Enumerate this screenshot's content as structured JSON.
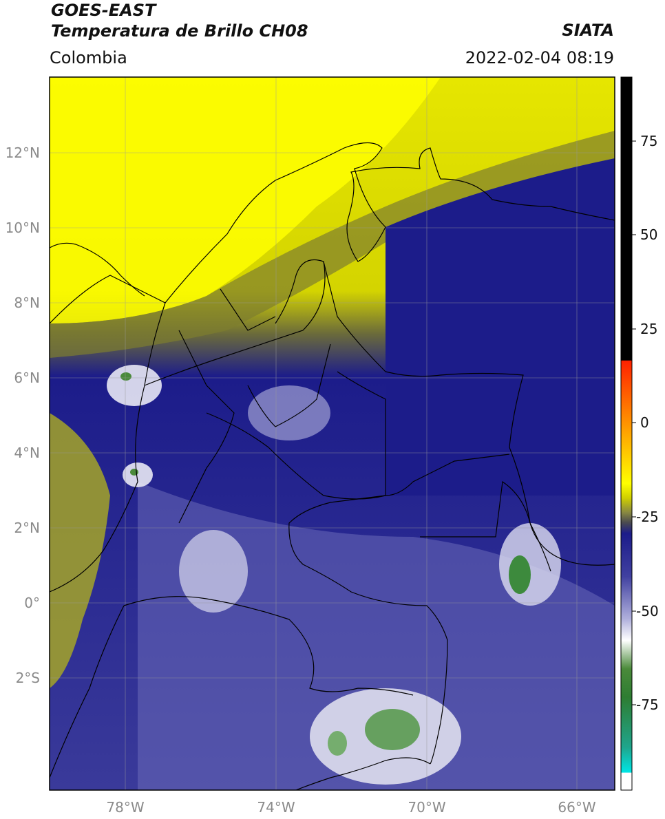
{
  "header": {
    "title_line1": "GOES-EAST",
    "title_line2": "Temperatura de Brillo CH08",
    "region": "Colombia",
    "source": "SIATA",
    "datetime": "2022-02-04 08:19"
  },
  "map": {
    "lon_labels": [
      "78°W",
      "74°W",
      "70°W",
      "66°W"
    ],
    "lat_labels": [
      "12°N",
      "10°N",
      "8°N",
      "6°N",
      "4°N",
      "2°N",
      "0°",
      "2°S"
    ]
  },
  "colorbar": {
    "labels": [
      "75",
      "50",
      "25",
      "0",
      "-25",
      "-50",
      "-75"
    ],
    "colors": {
      "black": "#000000",
      "red": "#ff2200",
      "orange": "#ff9900",
      "yellow": "#ffff00",
      "olive": "#6b6b2a",
      "navy": "#1c1c8a",
      "lavender": "#b0b0dc",
      "white": "#ffffff",
      "green": "#2e7d32",
      "teal": "#1fa58c",
      "cyan": "#00e5e5"
    }
  }
}
